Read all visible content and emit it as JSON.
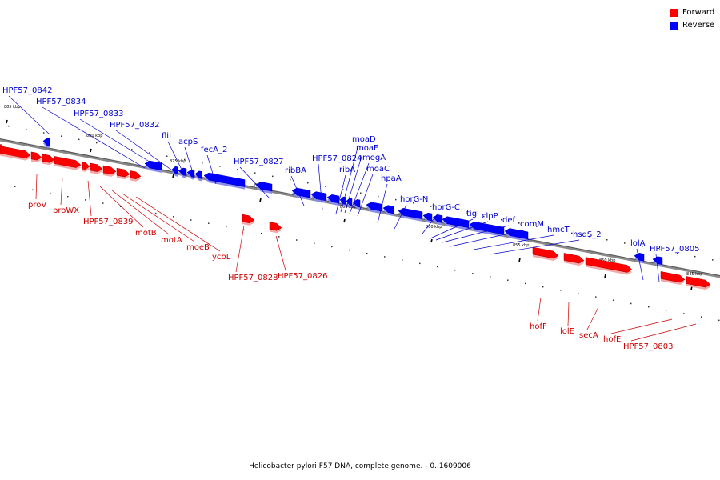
{
  "legend": {
    "forward_label": "Forward",
    "reverse_label": "Reverse",
    "forward_color": "#ff0000",
    "reverse_color": "#0000ff"
  },
  "colors": {
    "forward_label": "#cc0000",
    "reverse_label": "#0000cc",
    "backbone": "#888888"
  },
  "caption": "Helicobacter pylori F57 DNA, complete genome. - 0..1609006",
  "scale_labels": [
    "885 kbp",
    "880 kbp",
    "875 kbp",
    "870 kbp",
    "865 kbp",
    "860 kbp",
    "855 kbp",
    "850 kbp",
    "845 kbp"
  ],
  "reverse_genes": [
    "HPF57_0842",
    "HPF57_0834",
    "HPF57_0833",
    "HPF57_0832",
    "fliL",
    "acpS",
    "fecA_2",
    "HPF57_0827",
    "ribBA",
    "HPF57_0824",
    "moaD",
    "moaE",
    "mogA",
    "ribA",
    "moaC",
    "hpaA",
    "horG-N",
    "horG-C",
    "tig",
    "clpP",
    "def",
    "comM",
    "hmcT",
    "hsdS_2",
    "lolA",
    "HPF57_0805"
  ],
  "forward_genes": [
    "proV",
    "proWX",
    "HPF57_0839",
    "motB",
    "motA",
    "moeB",
    "ycbL",
    "HPF57_0828",
    "HPF57_0826",
    "hofF",
    "lolE",
    "secA",
    "hofE",
    "HPF57_0803"
  ]
}
